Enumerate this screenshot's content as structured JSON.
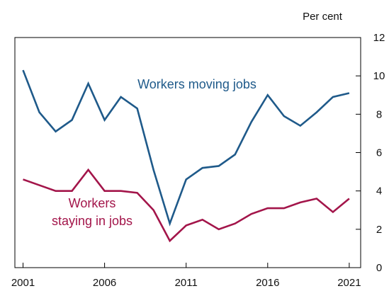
{
  "chart_data": {
    "type": "line",
    "title": "",
    "xlabel": "",
    "ylabel": "Per cent",
    "xlim": [
      2000.5,
      2021.7
    ],
    "ylim": [
      0,
      12
    ],
    "x_ticks": [
      2001,
      2006,
      2011,
      2016,
      2021
    ],
    "x_tick_labels": [
      "2001",
      "2006",
      "2011",
      "2016",
      "2021"
    ],
    "y_ticks": [
      0,
      2,
      4,
      6,
      8,
      10,
      12
    ],
    "y_tick_labels": [
      "0",
      "2",
      "4",
      "6",
      "8",
      "10",
      "12"
    ],
    "grid": false,
    "legend": "none",
    "series": [
      {
        "name": "Workers moving jobs",
        "color": "#1f5a8a",
        "x": [
          2001,
          2002,
          2003,
          2004,
          2005,
          2006,
          2007,
          2008,
          2009,
          2010,
          2011,
          2012,
          2013,
          2014,
          2015,
          2016,
          2017,
          2018,
          2019,
          2020,
          2021
        ],
        "values": [
          10.3,
          8.1,
          7.1,
          7.7,
          9.6,
          7.7,
          8.9,
          8.3,
          5.1,
          2.3,
          4.6,
          5.2,
          5.3,
          5.9,
          7.6,
          9.0,
          7.9,
          7.4,
          8.1,
          8.9,
          9.1
        ]
      },
      {
        "name": "Workers staying in jobs",
        "label_lines": [
          "Workers",
          "staying in jobs"
        ],
        "color": "#a3154a",
        "x": [
          2001,
          2002,
          2003,
          2004,
          2005,
          2006,
          2007,
          2008,
          2009,
          2010,
          2011,
          2012,
          2013,
          2014,
          2015,
          2016,
          2017,
          2018,
          2019,
          2020,
          2021
        ],
        "values": [
          4.6,
          4.3,
          4.0,
          4.0,
          5.1,
          4.0,
          4.0,
          3.9,
          3.0,
          1.4,
          2.2,
          2.5,
          2.0,
          2.3,
          2.8,
          3.1,
          3.1,
          3.4,
          3.6,
          2.9,
          3.6
        ]
      }
    ]
  }
}
